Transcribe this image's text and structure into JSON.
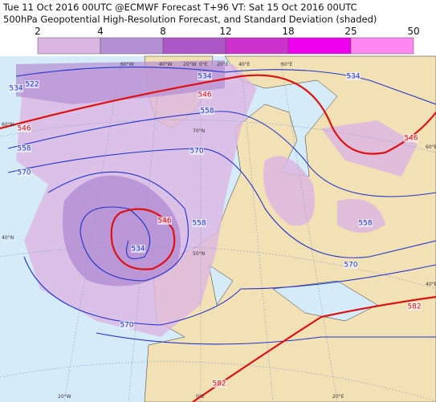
{
  "header": {
    "line1": "Tue 11 Oct 2016 00UTC @ECMWF Forecast T+96 VT: Sat 15 Oct 2016 00UTC",
    "line2": "500hPa Geopotential High-Resolution Forecast, and Standard Deviation (shaded)"
  },
  "colorbar": {
    "ticks": [
      2,
      4,
      8,
      12,
      18,
      25,
      50
    ],
    "colors": [
      "#dcb6e2",
      "#b58fd3",
      "#ad56c7",
      "#cc33cc",
      "#ee00ee",
      "#ff88f4"
    ]
  },
  "geo_labels": [
    "60°W",
    "40°W",
    "20°W",
    "0°E",
    "20°E",
    "40°E",
    "60°E",
    "60°N",
    "40°N",
    "60°E",
    "40°E",
    "70°N",
    "50°N",
    "20°W",
    "0°E",
    "20°E"
  ],
  "contours": [
    {
      "label": "522",
      "color": "#2233cc"
    },
    {
      "label": "534",
      "color": "#2233cc"
    },
    {
      "label": "534",
      "color": "#2233cc"
    },
    {
      "label": "546",
      "color": "#dd1111"
    },
    {
      "label": "546",
      "color": "#dd1111"
    },
    {
      "label": "558",
      "color": "#2233cc"
    },
    {
      "label": "558",
      "color": "#2233cc"
    },
    {
      "label": "570",
      "color": "#2233cc"
    },
    {
      "label": "570",
      "color": "#2233cc"
    },
    {
      "label": "546",
      "color": "#dd1111"
    },
    {
      "label": "534",
      "color": "#2233cc"
    },
    {
      "label": "558",
      "color": "#2233cc"
    },
    {
      "label": "570",
      "color": "#2233cc"
    },
    {
      "label": "534",
      "color": "#2233cc"
    },
    {
      "label": "546",
      "color": "#dd1111"
    },
    {
      "label": "558",
      "color": "#2233cc"
    },
    {
      "label": "570",
      "color": "#2233cc"
    },
    {
      "label": "582",
      "color": "#dd1111"
    },
    {
      "label": "582",
      "color": "#dd1111"
    }
  ]
}
